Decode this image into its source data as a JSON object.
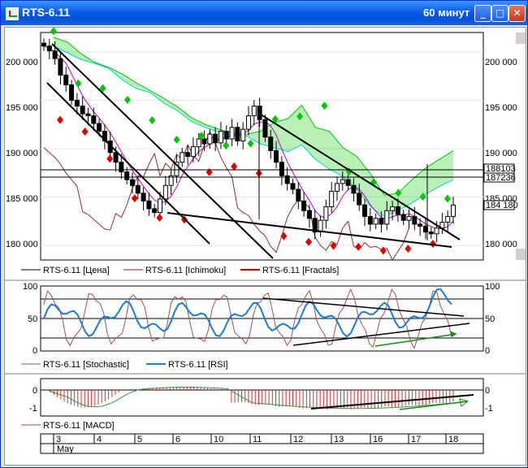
{
  "window": {
    "title": "RTS-6.11",
    "period": "60 минут",
    "minimize_glyph": "_",
    "maximize_glyph": "□",
    "close_glyph": "✕"
  },
  "price_panel": {
    "y_ticks": [
      "200 000",
      "195 000",
      "190 000",
      "185 000",
      "180 000"
    ],
    "right_labels": [
      "188103",
      "187236",
      "184 180"
    ],
    "legend": [
      {
        "label": "RTS-6.11 [Цена]",
        "color": "#000000"
      },
      {
        "label": "RTS-6.11 [Ichimoku]",
        "color": "#8b2020"
      },
      {
        "label": "RTS-6.11 [Fractals]",
        "color": "#cc0000"
      }
    ]
  },
  "osc_panel": {
    "y_ticks": [
      "100",
      "50",
      "0"
    ],
    "legend": [
      {
        "label": "RTS-6.11 [Stochastic]",
        "color": "#a05050"
      },
      {
        "label": "RTS-6.11 [RSI]",
        "color": "#1a7bd4"
      }
    ]
  },
  "macd_panel": {
    "y_ticks": [
      "0",
      "-1"
    ],
    "legend": [
      {
        "label": "RTS-6.11 [MACD]",
        "color": "#a05050"
      }
    ]
  },
  "date_axis": {
    "days": [
      "3",
      "4",
      "5",
      "6",
      "10",
      "11",
      "12",
      "13",
      "16",
      "17",
      "18"
    ],
    "month": "May"
  },
  "colors": {
    "title_bar": "#0a5ee6",
    "kumo_green": "#00c800",
    "kumo_cyan": "#00d0d0",
    "fractal_up": "#00c800",
    "fractal_down": "#e00000",
    "rsi": "#1a7bd4",
    "stoch": "#a05050",
    "ichimoku_lag": "#8b3030",
    "ichimoku_ma": "#c000c0",
    "trend_green": "#109010"
  },
  "chart_data": {
    "type": "candlestick",
    "ylim": [
      178500,
      202000
    ],
    "close_series": [
      200600,
      200100,
      199300,
      197600,
      196600,
      195000,
      194400,
      193600,
      193400,
      192600,
      191800,
      190800,
      189600,
      188600,
      187600,
      186800,
      186200,
      185400,
      184600,
      183800,
      183400,
      184800,
      186200,
      187200,
      188600,
      189600,
      189200,
      190200,
      191000,
      190500,
      191500,
      190600,
      191800,
      191000,
      192200,
      190800,
      192000,
      193400,
      194400,
      193000,
      191200,
      189800,
      188600,
      187200,
      186400,
      185800,
      184600,
      183600,
      182800,
      181400,
      182600,
      184000,
      185600,
      186400,
      186800,
      186200,
      185400,
      184200,
      183000,
      182200,
      182800,
      182200,
      183600,
      184000,
      183200,
      182600,
      183000,
      182200,
      182000,
      181400,
      181200,
      181800,
      182400,
      183000,
      184180
    ],
    "fractals_up": [
      201800,
      196400,
      195900,
      194700,
      192600,
      190600,
      191000,
      190000,
      190200,
      192700,
      193000,
      194100,
      187300,
      186200,
      185100,
      184700,
      184500
    ],
    "fractals_down": [
      193300,
      192100,
      189300,
      185200,
      183200,
      183000,
      187900,
      188500,
      187800,
      181300,
      180700,
      180300,
      180200,
      179800,
      180000,
      180500
    ],
    "kumo_a": [
      201500,
      201000,
      199800,
      198900,
      198400,
      197700,
      196800,
      196000,
      195200,
      194300,
      193200,
      192500,
      192000,
      191600,
      191500,
      191800,
      192700,
      193100,
      194500,
      192200,
      191800,
      190100,
      189200,
      187400,
      185200,
      185400,
      186800,
      188000,
      188900,
      189800
    ],
    "kumo_b": [
      200600,
      199900,
      199200,
      198800,
      198300,
      197100,
      196200,
      195800,
      194700,
      193900,
      192800,
      192200,
      191700,
      191400,
      191300,
      190500,
      190100,
      189700,
      190400,
      188900,
      187900,
      187100,
      185800,
      184000,
      183000,
      183600,
      184400,
      185300,
      186100,
      186800
    ],
    "oscillator": {
      "ylim": [
        0,
        100
      ],
      "levels": [
        20,
        50,
        80
      ]
    },
    "macd": {
      "ylim": [
        -1.5,
        0.5
      ]
    },
    "axis_range_y": "178 500 - 202 000"
  }
}
